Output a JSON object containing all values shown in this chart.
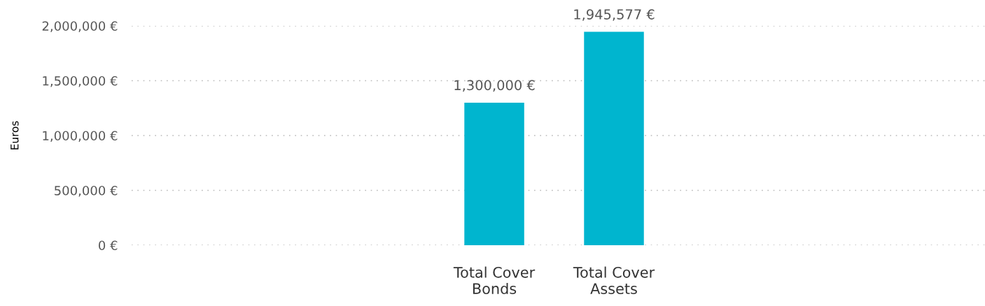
{
  "chart_data": {
    "type": "bar",
    "ylabel": "Euros",
    "categories": [
      "Total Cover Bonds",
      "Total Cover Assets"
    ],
    "values": [
      1300000,
      1945577
    ],
    "color": "#00b5cf",
    "value_labels": [
      "1,300,000 €",
      "1,945,577 €"
    ],
    "ylim": [
      0,
      2000000
    ],
    "yticks": [
      {
        "value": 0,
        "label": "0 €"
      },
      {
        "value": 500000,
        "label": "500,000 €"
      },
      {
        "value": 1000000,
        "label": "1,000,000 €"
      },
      {
        "value": 1500000,
        "label": "1,500,000 €"
      },
      {
        "value": 2000000,
        "label": "2,000,000 €"
      }
    ],
    "grid": "y",
    "legend": false
  }
}
